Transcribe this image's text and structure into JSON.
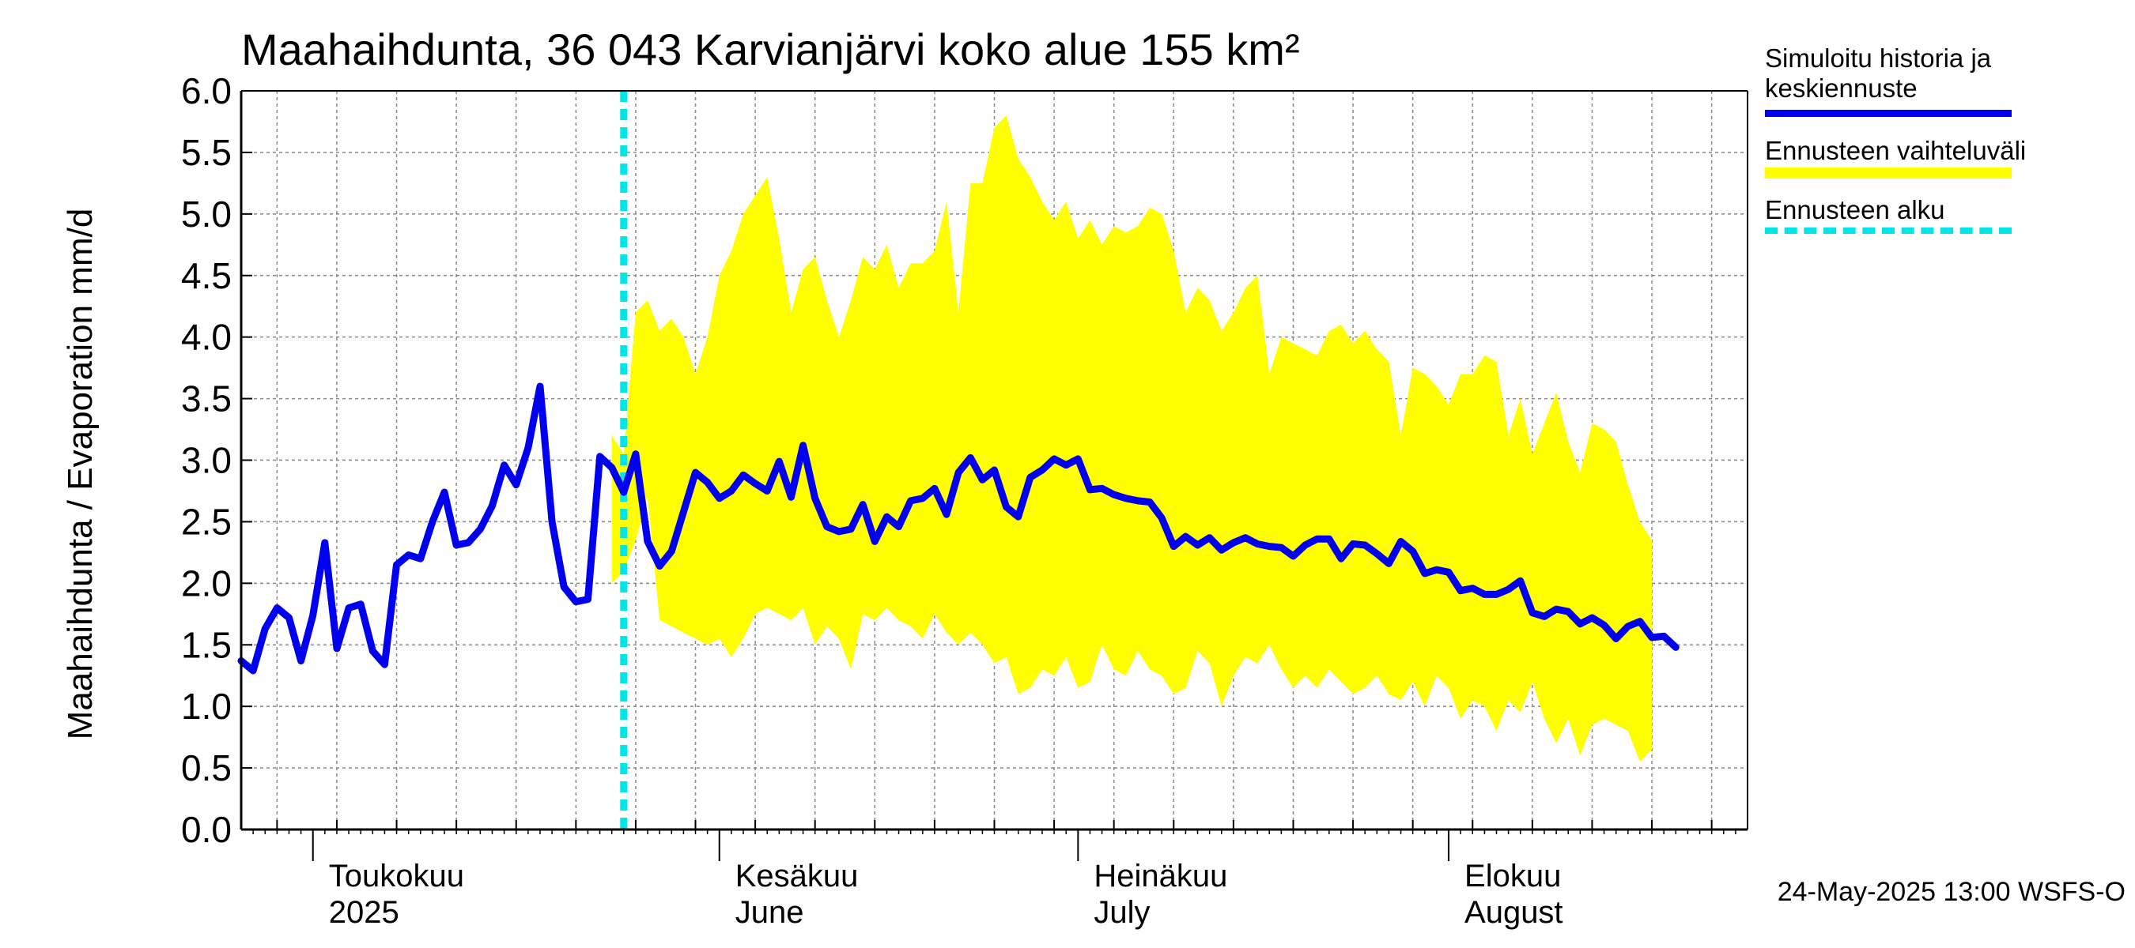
{
  "chart_data": {
    "type": "area",
    "title": "Maahaihdunta, 36 043 Karvianjärvi koko alue 155 km²",
    "ylabel": "Maahaihdunta / Evaporation   mm/d",
    "ylim": [
      0,
      6.0
    ],
    "yticks": [
      "0.0",
      "0.5",
      "1.0",
      "1.5",
      "2.0",
      "2.5",
      "3.0",
      "3.5",
      "4.0",
      "4.5",
      "5.0",
      "5.5",
      "6.0"
    ],
    "xlim_days": [
      0,
      126
    ],
    "grid": true,
    "month_labels": [
      {
        "fi": "Toukokuu",
        "en": "2025",
        "day": 6
      },
      {
        "fi": "Kesäkuu",
        "en": "June",
        "day": 40
      },
      {
        "fi": "Heinäkuu",
        "en": "July",
        "day": 70
      },
      {
        "fi": "Elokuu",
        "en": "August",
        "day": 101
      }
    ],
    "forecast_start_day": 32,
    "series": [
      {
        "name": "Simuloitu historia ja keskiennuste",
        "color": "#0000ee",
        "values": [
          1.37,
          1.29,
          1.63,
          1.8,
          1.72,
          1.37,
          1.74,
          2.33,
          1.47,
          1.8,
          1.83,
          1.45,
          1.34,
          2.15,
          2.23,
          2.2,
          2.5,
          2.74,
          2.31,
          2.33,
          2.44,
          2.63,
          2.96,
          2.8,
          3.1,
          3.6,
          2.5,
          1.97,
          1.85,
          1.87,
          3.03,
          2.94,
          2.74,
          3.05,
          2.34,
          2.14,
          2.26,
          2.58,
          2.9,
          2.82,
          2.69,
          2.75,
          2.88,
          2.81,
          2.75,
          2.99,
          2.7,
          3.12,
          2.69,
          2.46,
          2.42,
          2.44,
          2.64,
          2.34,
          2.54,
          2.46,
          2.67,
          2.69,
          2.77,
          2.56,
          2.9,
          3.02,
          2.84,
          2.92,
          2.62,
          2.54,
          2.86,
          2.92,
          3.01,
          2.96,
          3.01,
          2.76,
          2.77,
          2.72,
          2.69,
          2.67,
          2.66,
          2.53,
          2.3,
          2.38,
          2.31,
          2.37,
          2.27,
          2.33,
          2.37,
          2.32,
          2.3,
          2.29,
          2.22,
          2.31,
          2.36,
          2.36,
          2.2,
          2.32,
          2.31,
          2.24,
          2.16,
          2.34,
          2.26,
          2.08,
          2.11,
          2.09,
          1.94,
          1.96,
          1.91,
          1.91,
          1.95,
          2.02,
          1.76,
          1.73,
          1.79,
          1.77,
          1.67,
          1.72,
          1.66,
          1.55,
          1.65,
          1.69,
          1.56,
          1.57,
          1.48
        ]
      },
      {
        "name": "Ennusteen vaihteluväli",
        "color": "#ffff00",
        "start_day": 31,
        "upper": [
          3.2,
          3.05,
          4.2,
          4.3,
          4.05,
          4.15,
          4.0,
          3.7,
          4.0,
          4.5,
          4.7,
          5.0,
          5.15,
          5.3,
          4.8,
          4.2,
          4.55,
          4.65,
          4.3,
          4.0,
          4.3,
          4.65,
          4.55,
          4.75,
          4.4,
          4.6,
          4.6,
          4.7,
          5.1,
          4.2,
          5.25,
          5.25,
          5.7,
          5.8,
          5.45,
          5.3,
          5.1,
          4.95,
          5.1,
          4.8,
          4.95,
          4.75,
          4.9,
          4.85,
          4.9,
          5.05,
          5.0,
          4.7,
          4.2,
          4.4,
          4.3,
          4.05,
          4.2,
          4.4,
          4.5,
          3.7,
          4.0,
          3.95,
          3.9,
          3.85,
          4.05,
          4.1,
          3.95,
          4.05,
          3.9,
          3.8,
          3.2,
          3.75,
          3.7,
          3.6,
          3.45,
          3.7,
          3.7,
          3.85,
          3.8,
          3.2,
          3.5,
          3.05,
          3.3,
          3.55,
          3.15,
          2.9,
          3.3,
          3.25,
          3.15,
          2.8,
          2.5,
          2.35
        ],
        "lower": [
          2.0,
          2.1,
          2.35,
          2.7,
          1.7,
          1.65,
          1.6,
          1.55,
          1.5,
          1.55,
          1.4,
          1.55,
          1.75,
          1.8,
          1.75,
          1.7,
          1.8,
          1.5,
          1.65,
          1.55,
          1.3,
          1.75,
          1.7,
          1.8,
          1.7,
          1.65,
          1.55,
          1.75,
          1.6,
          1.5,
          1.6,
          1.5,
          1.35,
          1.4,
          1.1,
          1.15,
          1.3,
          1.25,
          1.4,
          1.15,
          1.2,
          1.5,
          1.3,
          1.25,
          1.45,
          1.3,
          1.25,
          1.1,
          1.15,
          1.45,
          1.35,
          1.0,
          1.25,
          1.4,
          1.35,
          1.5,
          1.3,
          1.15,
          1.25,
          1.15,
          1.3,
          1.2,
          1.1,
          1.15,
          1.25,
          1.1,
          1.05,
          1.2,
          1.0,
          1.25,
          1.15,
          0.9,
          1.05,
          1.0,
          0.8,
          1.05,
          0.95,
          1.2,
          0.9,
          0.7,
          0.9,
          0.6,
          0.85,
          0.9,
          0.85,
          0.8,
          0.55,
          0.65
        ]
      },
      {
        "name": "Ennusteen alku",
        "color": "#00e5e5"
      }
    ]
  },
  "legend": {
    "line1a": "Simuloitu historia ja",
    "line1b": "keskiennuste",
    "range": "Ennusteen vaihteluväli",
    "start": "Ennusteen alku"
  },
  "footer": "24-May-2025 13:00 WSFS-O"
}
